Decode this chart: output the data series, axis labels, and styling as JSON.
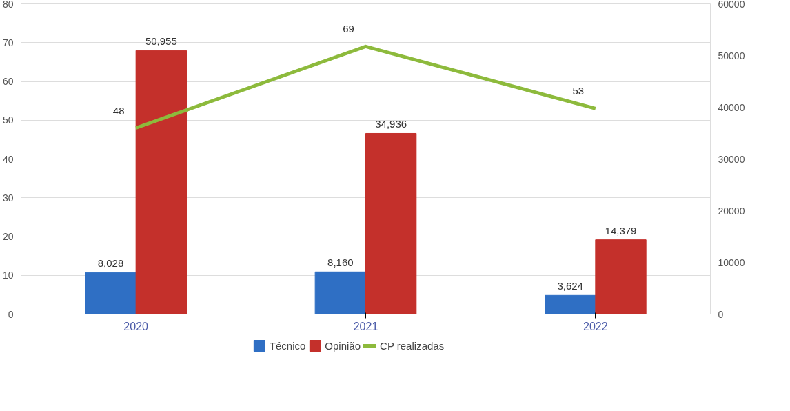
{
  "chart_data": {
    "type": "bar",
    "categories": [
      "2020",
      "2021",
      "2022"
    ],
    "series": [
      {
        "name": "Técnico",
        "color": "#2f6fc4",
        "values": [
          8028,
          8160,
          3624
        ],
        "value_labels": [
          "8,028",
          "8,160",
          "3,624"
        ],
        "axis": "y2"
      },
      {
        "name": "Opinião",
        "color": "#c4302b",
        "values": [
          50955,
          34936,
          14379
        ],
        "value_labels": [
          "50,955",
          "34,936",
          "14,379"
        ],
        "axis": "y2"
      },
      {
        "name": "CP realizadas",
        "type": "line",
        "color": "#8dba3c",
        "values": [
          48,
          69,
          53
        ],
        "value_labels": [
          "48",
          "69",
          "53"
        ]
      }
    ],
    "ylim": [
      0,
      80
    ],
    "yticks": [
      0,
      10,
      20,
      30,
      40,
      50,
      60,
      70,
      80
    ],
    "y2lim": [
      0,
      60000
    ],
    "y2ticks": [
      0,
      10000,
      20000,
      30000,
      40000,
      50000,
      60000
    ],
    "grid": "y",
    "legend": "bottom",
    "data_labels": true
  }
}
